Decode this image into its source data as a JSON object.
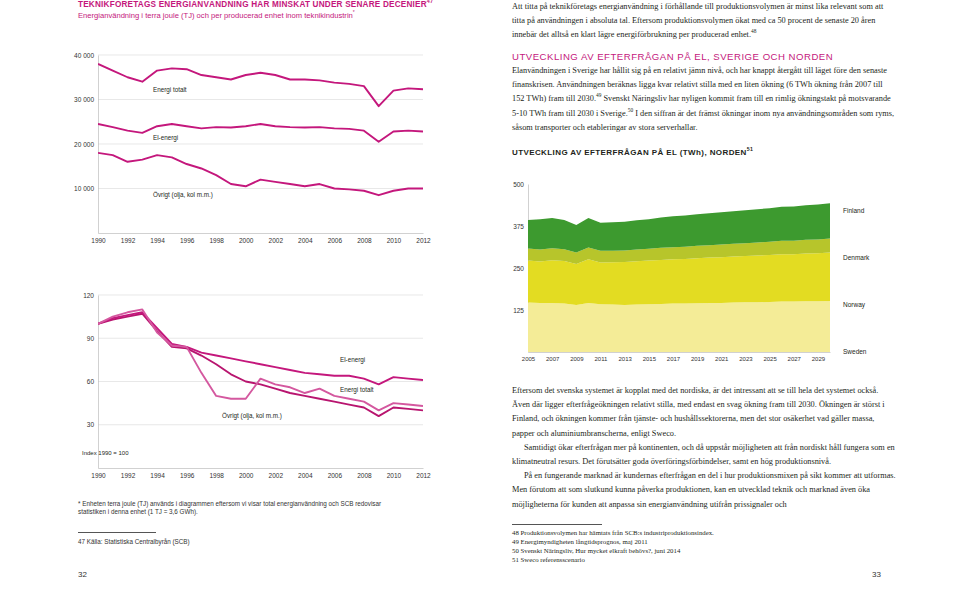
{
  "document": {
    "left": {
      "footnotes": [
        "* Enheten terra joule (TJ) används i diagrammen eftersom vi visar total energianvändning och SCB redovisar statistiken i denna enhet (1 TJ = 3,6 GWh).",
        "47 Källa: Statistiska Centralbyrån (SCB)"
      ],
      "page_number": 32
    },
    "right": {
      "intro": [
        {
          "text": "Att titta på teknikföretags energianvändning i förhållande till produktionsvolymen är minst lika relevant som att titta på användningen i absoluta tal. Eftersom produktionsvolymen ökat med ca 50 procent de senaste 20 åren innebär det alltså en klart lägre energiförbrukning per producerad enhet."
        },
        {
          "sup": "48"
        }
      ],
      "heading": "UTVECKLING AV EFTERFRÅGAN PÅ EL, SVERIGE OCH NORDEN",
      "paragraphs": [
        [
          {
            "text": "Elanvändningen i Sverige har hållit sig på en relativt jämn nivå, och har knappt återgått till läget före den senaste finanskrisen. Användningen beräknas ligga kvar relativt stilla med en liten ökning (6 TWh ökning från 2007 till 152 TWh) fram till 2030."
          },
          {
            "sup": "49"
          },
          {
            "text": " Svenskt Näringsliv har nyligen kommit fram till en rimlig ökningstakt på motsvarande 5-10 TWh fram till 2030 i Sverige."
          },
          {
            "sup": "50"
          },
          {
            "text": " I den siffran är det främst ökningar inom nya användningsområden som ryms, såsom transporter och etableringar av stora serverhallar."
          }
        ],
        [
          {
            "text": "Eftersom det svenska systemet är kopplat med det nordiska, är det intressant att se till hela det systemet också. Även där ligger efterfrågeökningen relativt stilla, med endast en svag ökning fram till 2030. Ökningen är störst i Finland, och ökningen kommer från tjänste- och hushållssektorerna, men det stor osäkerhet vad gäller massa, papper och aluminiumbranscherna, enligt Sweco."
          }
        ],
        [
          {
            "text": "Samtidigt ökar efterfrågan mer på kontinenten, och då uppstår möjligheten att från nordiskt håll fungera som en klimatneutral resurs. Det förutsätter goda överföringsförbindelser, samt en hög produktionsnivå."
          }
        ],
        [
          {
            "text": "På en fungerande marknad är kundernas efterfrågan en del i hur produktionsmixen på sikt kommer att utformas. Men förutom att som slutkund kunna påverka produktionen, kan en utvecklad teknik och marknad även öka möjligheterna för kunden att anpassa sin energianvändning utifrån prissignaler och"
          }
        ]
      ],
      "footnotes": [
        "48 Produktionsvolymen har hämtats från SCB:s industriproduktionsindex.",
        "49 Energimyndigheten långtidsprognos, maj 2011",
        "50 Svenskt Näringsliv, Hur mycket elkraft behövs?, juni 2014",
        "51 Sweco referensscenario"
      ],
      "page_number": 33
    }
  },
  "chart_data": [
    {
      "type": "line",
      "title": "TEKNIKFÖRETAGS ENERGIANVÄNDNING HAR MINSKAT UNDER SENARE DECENIER",
      "title_ref": "47",
      "subtitle": "Energianvändning i terra joule (TJ) och per producerad enhet inom teknikindustrin",
      "subtitle_ref": "*",
      "x": [
        1990,
        1991,
        1992,
        1993,
        1994,
        1995,
        1996,
        1997,
        1998,
        1999,
        2000,
        2001,
        2002,
        2003,
        2004,
        2005,
        2006,
        2007,
        2008,
        2009,
        2010,
        2011,
        2012
      ],
      "xlim": [
        1990,
        2012
      ],
      "xticks": [
        1990,
        1992,
        1994,
        1996,
        1998,
        2000,
        2002,
        2004,
        2006,
        2008,
        2010,
        2012
      ],
      "ylim": [
        0,
        40000
      ],
      "yticks": [
        {
          "value": 10000,
          "label": "10 000"
        },
        {
          "value": 20000,
          "label": "20 000"
        },
        {
          "value": 30000,
          "label": "30 000"
        },
        {
          "value": 40000,
          "label": "40 000"
        }
      ],
      "grid": true,
      "series": [
        {
          "name": "Energi totalt",
          "color": "#c4177c",
          "values": [
            38000,
            36500,
            35000,
            34000,
            36500,
            37000,
            36800,
            35500,
            35000,
            34500,
            35500,
            36000,
            35500,
            34500,
            34500,
            34300,
            33800,
            33500,
            33000,
            28500,
            32000,
            32500,
            32300
          ]
        },
        {
          "name": "El-energi",
          "color": "#c4177c",
          "values": [
            24500,
            23800,
            23000,
            22500,
            24000,
            24500,
            24000,
            23500,
            23800,
            23700,
            24000,
            24500,
            24000,
            23800,
            23700,
            23800,
            23500,
            23400,
            23000,
            20500,
            22800,
            23000,
            22800
          ]
        },
        {
          "name": "Övrigt (olja, kol m.m.)",
          "color": "#c4177c",
          "values": [
            18000,
            17500,
            16000,
            16500,
            17500,
            17000,
            15500,
            14500,
            13000,
            11000,
            10500,
            12000,
            11500,
            11000,
            10500,
            11000,
            10000,
            9800,
            9500,
            8500,
            9500,
            10000,
            10000
          ]
        }
      ]
    },
    {
      "type": "line",
      "annotations": [
        "Index 1990 = 100"
      ],
      "x": [
        1990,
        1991,
        1992,
        1993,
        1994,
        1995,
        1996,
        1997,
        1998,
        1999,
        2000,
        2001,
        2002,
        2003,
        2004,
        2005,
        2006,
        2007,
        2008,
        2009,
        2010,
        2011,
        2012
      ],
      "xlim": [
        1990,
        2012
      ],
      "xticks": [
        1990,
        1992,
        1994,
        1996,
        1998,
        2000,
        2002,
        2004,
        2006,
        2008,
        2010,
        2012
      ],
      "ylim": [
        0,
        120
      ],
      "yticks": [
        30,
        60,
        90,
        120
      ],
      "grid": true,
      "series": [
        {
          "name": "Energi totalt",
          "color": "#b8156f",
          "values": [
            100,
            103,
            105,
            107,
            95,
            84,
            83,
            78,
            72,
            65,
            60,
            58,
            55,
            52,
            50,
            48,
            46,
            44,
            42,
            36,
            42,
            41,
            40
          ]
        },
        {
          "name": "El-energi",
          "color": "#c4177c",
          "values": [
            100,
            104,
            106,
            108,
            97,
            86,
            84,
            80,
            78,
            76,
            74,
            72,
            70,
            68,
            66,
            65,
            64,
            64,
            62,
            58,
            63,
            62,
            61
          ]
        },
        {
          "name": "Övrigt (olja, kol m.m.)",
          "color": "#d4589f",
          "values": [
            100,
            105,
            108,
            110,
            94,
            85,
            84,
            66,
            50,
            48,
            48,
            62,
            58,
            56,
            52,
            55,
            50,
            48,
            46,
            40,
            45,
            44,
            43
          ]
        }
      ]
    },
    {
      "type": "area",
      "stacked": true,
      "title": "UTVECKLING AV EFTERFRÅGAN PÅ EL (TWh), NORDEN",
      "title_ref": "51",
      "x": [
        2005,
        2006,
        2007,
        2008,
        2009,
        2010,
        2011,
        2012,
        2013,
        2014,
        2015,
        2016,
        2017,
        2018,
        2019,
        2020,
        2021,
        2022,
        2023,
        2024,
        2025,
        2026,
        2027,
        2028,
        2029,
        2030
      ],
      "xlim": [
        2005,
        2030
      ],
      "xticks": [
        2005,
        2007,
        2009,
        2011,
        2013,
        2015,
        2017,
        2019,
        2021,
        2023,
        2025,
        2027,
        2029
      ],
      "ylim": [
        0,
        500
      ],
      "yticks": [
        125,
        250,
        375,
        500
      ],
      "grid": false,
      "series": [
        {
          "name": "Sweden",
          "color": "#f4ec97",
          "values": [
            147,
            146,
            146,
            144,
            140,
            146,
            142,
            141,
            140,
            141,
            142,
            143,
            144,
            144,
            145,
            146,
            146,
            147,
            148,
            148,
            149,
            150,
            150,
            151,
            151,
            152
          ]
        },
        {
          "name": "Norway",
          "color": "#e3dc22",
          "values": [
            125,
            123,
            127,
            127,
            122,
            130,
            124,
            126,
            128,
            129,
            130,
            131,
            132,
            133,
            134,
            135,
            136,
            137,
            138,
            139,
            140,
            141,
            141,
            142,
            143,
            144
          ]
        },
        {
          "name": "Denmark",
          "color": "#b7c52b",
          "values": [
            36,
            36,
            36,
            35,
            34,
            35,
            35,
            34,
            34,
            35,
            35,
            36,
            36,
            36,
            37,
            37,
            38,
            38,
            38,
            39,
            39,
            40,
            40,
            41,
            41,
            42
          ]
        },
        {
          "name": "Finland",
          "color": "#3d9a2f",
          "values": [
            85,
            90,
            90,
            87,
            82,
            88,
            84,
            85,
            86,
            87,
            88,
            90,
            92,
            93,
            94,
            95,
            96,
            97,
            98,
            99,
            100,
            101,
            102,
            103,
            104,
            105
          ]
        }
      ]
    }
  ]
}
